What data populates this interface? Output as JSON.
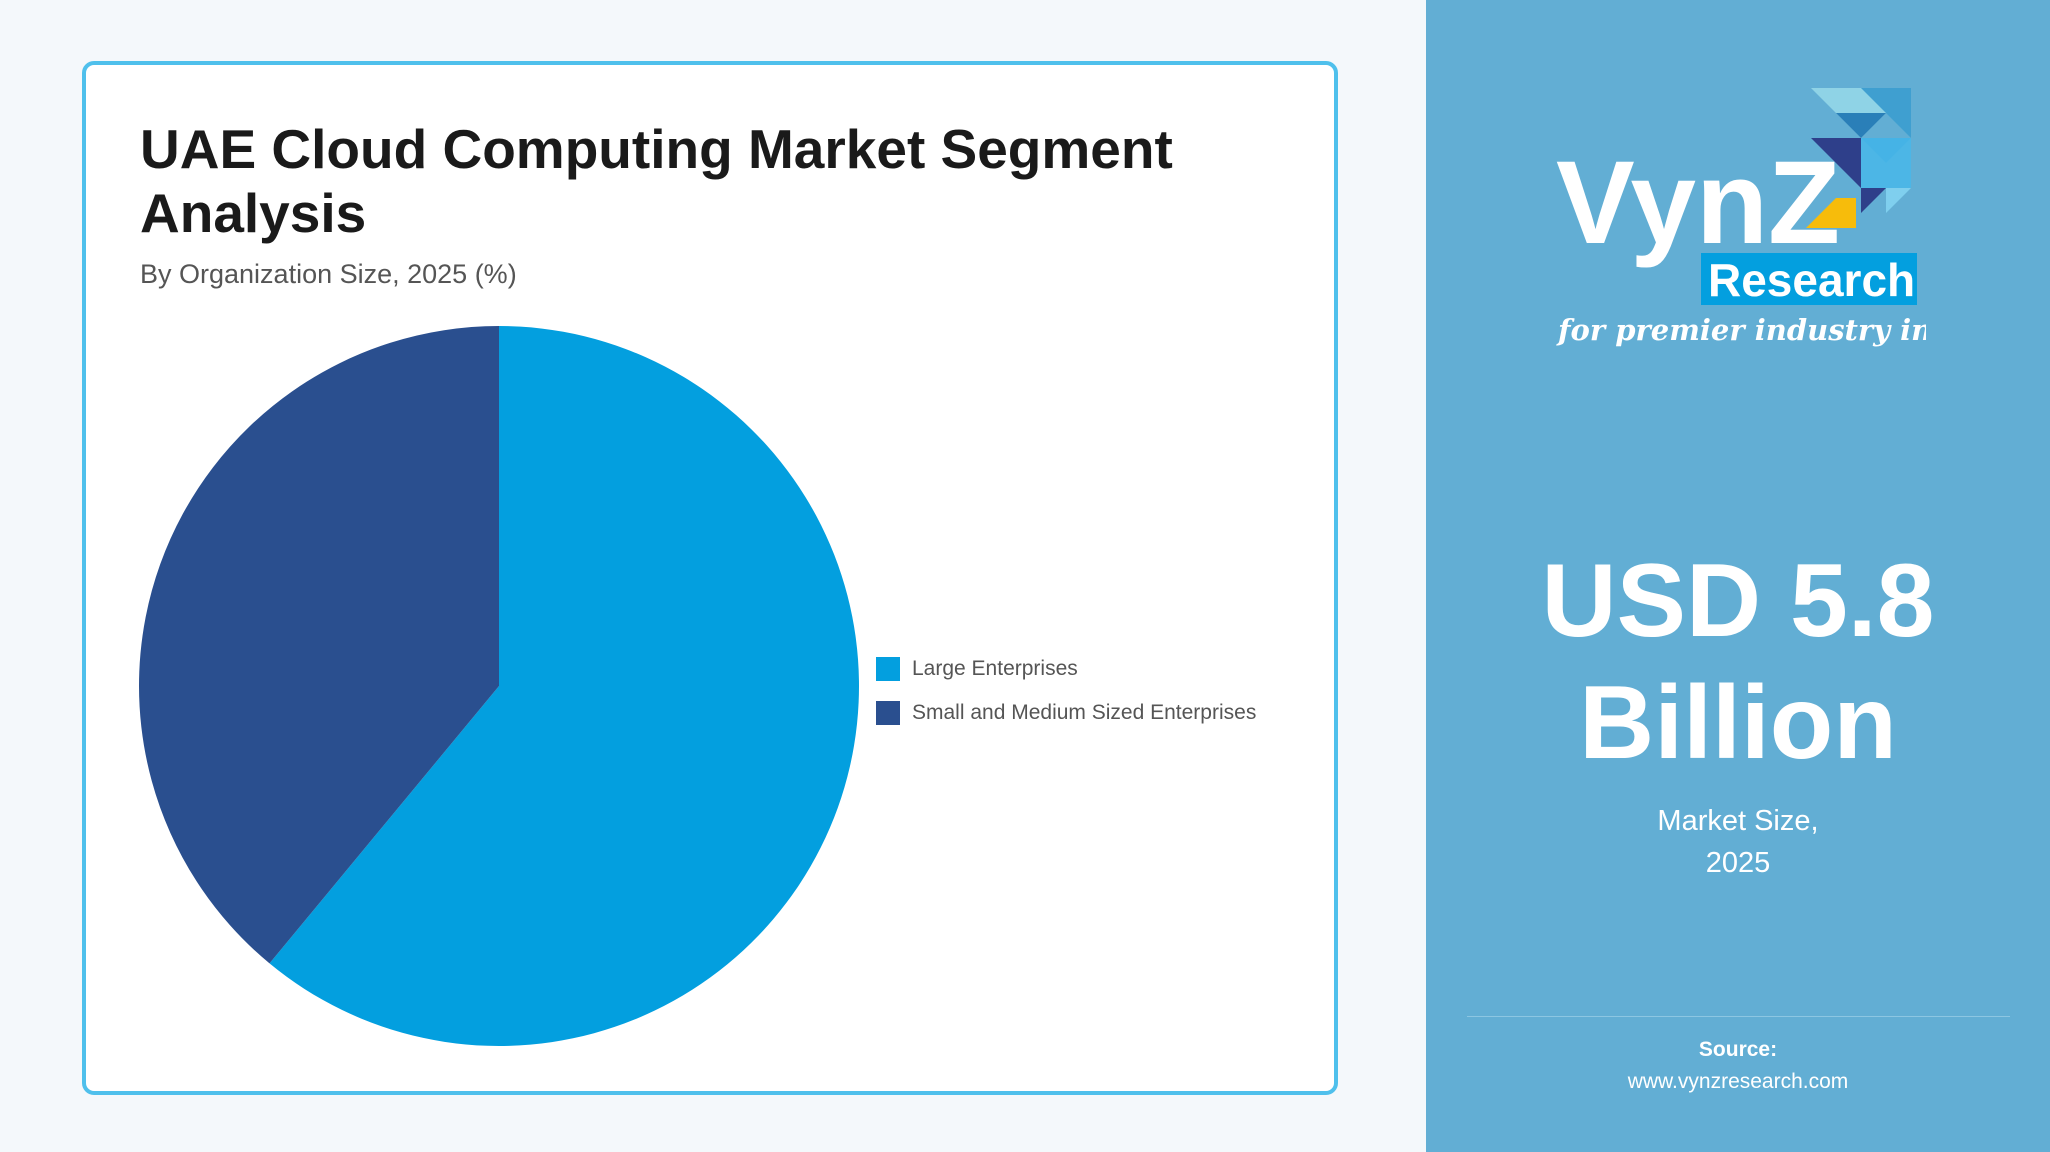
{
  "card": {
    "title": "UAE Cloud Computing Market Segment Analysis",
    "subtitle": "By Organization Size, 2025 (%)"
  },
  "chart_data": {
    "type": "pie",
    "categories": [
      "Large Enterprises",
      "Small and Medium Sized Enterprises"
    ],
    "values": [
      61,
      39
    ],
    "colors": [
      "#039fdf",
      "#2a4f8f"
    ],
    "start_angle": "top, clockwise",
    "legend_position": "right"
  },
  "panel": {
    "logo": {
      "brand": "VynZ",
      "sub": "Research",
      "tagline": "for premier industry insights"
    },
    "market_value_line1": "USD 5.8",
    "market_value_line2": "Billion",
    "market_label_line1": "Market Size,",
    "market_label_line2": "2025",
    "source_label": "Source:",
    "source_url": "www.vynzresearch.com"
  },
  "colors": {
    "panel_bg": "#62aed4",
    "card_border": "#4fc0ec",
    "accent_yellow": "#f7bc0b"
  }
}
